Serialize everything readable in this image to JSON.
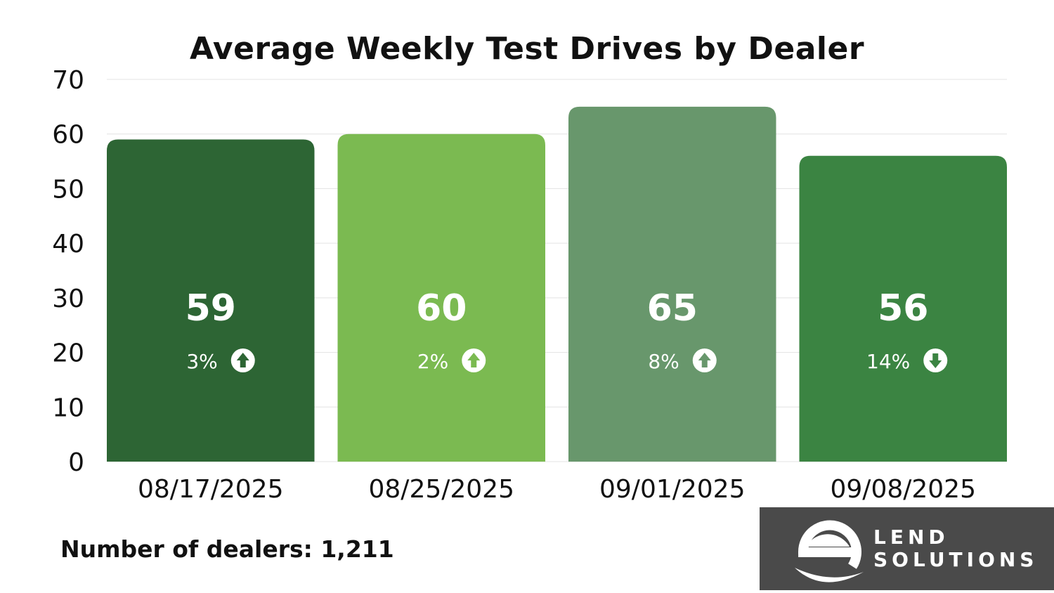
{
  "chart_data": {
    "type": "bar",
    "title": "Average Weekly Test Drives by Dealer",
    "categories": [
      "08/17/2025",
      "08/25/2025",
      "09/01/2025",
      "09/08/2025"
    ],
    "values": [
      59,
      60,
      65,
      56
    ],
    "changes": [
      "3%",
      "2%",
      "8%",
      "14%"
    ],
    "change_directions": [
      "up",
      "up",
      "up",
      "down"
    ],
    "bar_colors": [
      "#2d6534",
      "#7bba51",
      "#68976c",
      "#3b8442"
    ],
    "ylim": [
      0,
      70
    ],
    "yticks": [
      "0",
      "10",
      "20",
      "30",
      "40",
      "50",
      "60",
      "70"
    ],
    "grid": true,
    "legend": "none"
  },
  "footnote": "Number of dealers: 1,211",
  "logo": {
    "line1": "LEND",
    "line2": "SOLUTIONS",
    "icon": "lend-solutions-e-logo-icon",
    "background": "#4a4a4a"
  }
}
